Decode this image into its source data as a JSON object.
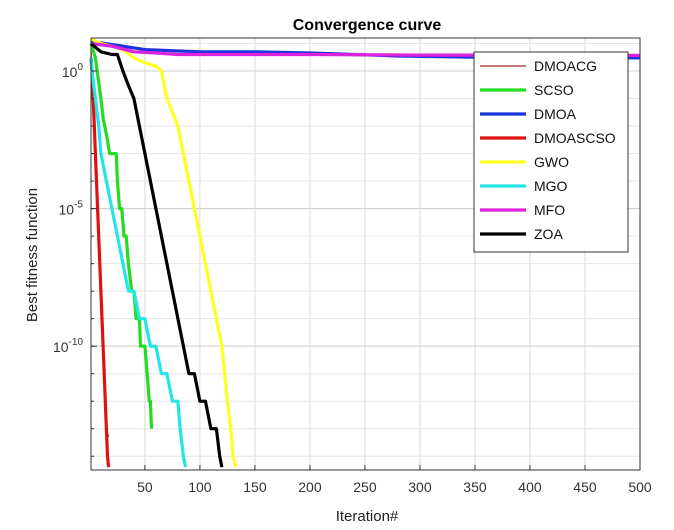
{
  "chart_data": {
    "type": "line",
    "title": "Convergence curve",
    "xlabel": "Iteration#",
    "ylabel": "Best fitness function",
    "xlim": [
      1,
      500
    ],
    "ylim_log10": [
      -14.5,
      1.2
    ],
    "y_scale": "log",
    "grid": true,
    "legend_position": "top-right",
    "x_ticks": [
      {
        "value": 50,
        "label": "50"
      },
      {
        "value": 100,
        "label": "100"
      },
      {
        "value": 150,
        "label": "150"
      },
      {
        "value": 200,
        "label": "200"
      },
      {
        "value": 250,
        "label": "250"
      },
      {
        "value": 300,
        "label": "300"
      },
      {
        "value": 350,
        "label": "350"
      },
      {
        "value": 400,
        "label": "400"
      },
      {
        "value": 450,
        "label": "450"
      },
      {
        "value": 500,
        "label": "500"
      }
    ],
    "y_ticks": [
      {
        "value": 1,
        "base": "10",
        "exp": "0"
      },
      {
        "value": 1e-05,
        "base": "10",
        "exp": "-5"
      },
      {
        "value": 1e-10,
        "base": "10",
        "exp": "-10"
      }
    ],
    "series": [
      {
        "name": "DMOACG",
        "color": "#a52a2a",
        "thin": true,
        "points": [
          [
            1,
            5
          ],
          [
            3,
            0.1
          ],
          [
            5,
            0.001
          ],
          [
            7,
            1e-05
          ],
          [
            9,
            1e-07
          ],
          [
            11,
            1e-09
          ],
          [
            13,
            1e-11
          ],
          [
            15,
            1e-13
          ],
          [
            17,
            5e-14
          ]
        ]
      },
      {
        "name": "SCSO",
        "color": "#22dd22",
        "points": [
          [
            1,
            10
          ],
          [
            5,
            3
          ],
          [
            10,
            0.1
          ],
          [
            12,
            0.02
          ],
          [
            15,
            0.005
          ],
          [
            18,
            0.001
          ],
          [
            20,
            0.001
          ],
          [
            22,
            0.001
          ],
          [
            24,
            0.001
          ],
          [
            25,
            0.0001
          ],
          [
            27,
            1e-05
          ],
          [
            29,
            1e-05
          ],
          [
            31,
            1e-06
          ],
          [
            33,
            1e-06
          ],
          [
            35,
            1e-07
          ],
          [
            38,
            1e-08
          ],
          [
            40,
            1e-08
          ],
          [
            42,
            1e-09
          ],
          [
            45,
            1e-09
          ],
          [
            46,
            1e-10
          ],
          [
            50,
            1e-10
          ],
          [
            52,
            1e-11
          ],
          [
            54,
            1e-12
          ],
          [
            55,
            1e-12
          ],
          [
            56,
            1e-13
          ]
        ]
      },
      {
        "name": "DMOA",
        "color": "#1a33dd",
        "points": [
          [
            1,
            12
          ],
          [
            30,
            8
          ],
          [
            50,
            6
          ],
          [
            100,
            5
          ],
          [
            150,
            5
          ],
          [
            200,
            4.5
          ],
          [
            240,
            4
          ],
          [
            280,
            3.5
          ],
          [
            350,
            3.2
          ],
          [
            400,
            3.2
          ],
          [
            450,
            3.1
          ],
          [
            500,
            3
          ]
        ]
      },
      {
        "name": "DMOASCSO",
        "color": "#dd1111",
        "points": [
          [
            1,
            3
          ],
          [
            2,
            1
          ],
          [
            3,
            0.1
          ],
          [
            4,
            0.01
          ],
          [
            5,
            0.001
          ],
          [
            6,
            0.0001
          ],
          [
            7,
            1e-05
          ],
          [
            8,
            1e-06
          ],
          [
            9,
            1e-07
          ],
          [
            10,
            1e-08
          ],
          [
            11,
            1e-09
          ],
          [
            12,
            1e-10
          ],
          [
            13,
            1e-11
          ],
          [
            14,
            1e-12
          ],
          [
            15,
            1e-13
          ],
          [
            16,
            1e-14
          ],
          [
            17,
            4e-15
          ]
        ]
      },
      {
        "name": "GWO",
        "color": "#ffff22",
        "points": [
          [
            1,
            15
          ],
          [
            10,
            10
          ],
          [
            20,
            8
          ],
          [
            30,
            6
          ],
          [
            40,
            3
          ],
          [
            50,
            2
          ],
          [
            60,
            1.5
          ],
          [
            65,
            1
          ],
          [
            70,
            0.1
          ],
          [
            80,
            0.01
          ],
          [
            90,
            0.0001
          ],
          [
            100,
            1e-06
          ],
          [
            110,
            1e-08
          ],
          [
            115,
            1e-09
          ],
          [
            120,
            1e-10
          ],
          [
            125,
            1e-12
          ],
          [
            128,
            1e-13
          ],
          [
            130,
            1e-14
          ],
          [
            133,
            4e-15
          ]
        ]
      },
      {
        "name": "MGO",
        "color": "#22e6e6",
        "points": [
          [
            1,
            3
          ],
          [
            2,
            1
          ],
          [
            5,
            0.1
          ],
          [
            8,
            0.01
          ],
          [
            10,
            0.001
          ],
          [
            15,
            0.0001
          ],
          [
            20,
            1e-05
          ],
          [
            25,
            1e-06
          ],
          [
            30,
            1e-07
          ],
          [
            35,
            1e-08
          ],
          [
            40,
            1e-08
          ],
          [
            45,
            1e-09
          ],
          [
            50,
            1e-09
          ],
          [
            55,
            1e-10
          ],
          [
            60,
            1e-10
          ],
          [
            65,
            1e-11
          ],
          [
            70,
            1e-11
          ],
          [
            75,
            1e-12
          ],
          [
            80,
            1e-12
          ],
          [
            82,
            1e-13
          ],
          [
            85,
            1e-14
          ],
          [
            87,
            4e-15
          ]
        ]
      },
      {
        "name": "MFO",
        "color": "#dd22dd",
        "points": [
          [
            1,
            10
          ],
          [
            20,
            8
          ],
          [
            40,
            5
          ],
          [
            60,
            4.5
          ],
          [
            80,
            4
          ],
          [
            100,
            4
          ],
          [
            200,
            4
          ],
          [
            300,
            3.8
          ],
          [
            400,
            3.8
          ],
          [
            500,
            3.7
          ]
        ]
      },
      {
        "name": "ZOA",
        "color": "#000000",
        "points": [
          [
            1,
            10
          ],
          [
            10,
            5
          ],
          [
            20,
            4
          ],
          [
            25,
            4
          ],
          [
            30,
            1
          ],
          [
            35,
            0.3
          ],
          [
            40,
            0.1
          ],
          [
            45,
            0.01
          ],
          [
            50,
            0.001
          ],
          [
            55,
            0.0001
          ],
          [
            60,
            1e-05
          ],
          [
            65,
            1e-06
          ],
          [
            70,
            1e-07
          ],
          [
            75,
            1e-08
          ],
          [
            80,
            1e-09
          ],
          [
            85,
            1e-10
          ],
          [
            90,
            1e-11
          ],
          [
            95,
            1e-11
          ],
          [
            100,
            1e-12
          ],
          [
            105,
            1e-12
          ],
          [
            110,
            1e-13
          ],
          [
            115,
            1e-13
          ],
          [
            118,
            1e-14
          ],
          [
            120,
            4e-15
          ]
        ]
      }
    ]
  }
}
